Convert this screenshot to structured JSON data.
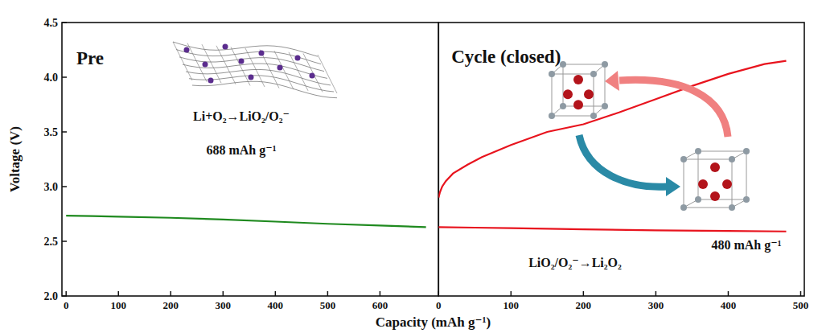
{
  "chart_data": [
    {
      "type": "line",
      "y_label": "Voltage (V)",
      "x_label": "Capacity (mAh g⁻¹)",
      "annotations": [
        "Pre",
        "Li+O₂→LiO₂/O₂⁻",
        "688 mAh g⁻¹"
      ],
      "xlim": [
        -8,
        712
      ],
      "xticks": [
        0,
        100,
        200,
        300,
        400,
        500,
        600
      ],
      "ylim": [
        2.0,
        4.5
      ],
      "yticks": [
        {
          "value": 2.0,
          "label": "2.0"
        },
        {
          "value": 2.5,
          "label": "2.5"
        },
        {
          "value": 3.0,
          "label": "3.0"
        },
        {
          "value": 3.5,
          "label": "3.5"
        },
        {
          "value": 4.0,
          "label": "4.0"
        },
        {
          "value": 4.5,
          "label": "4.5"
        }
      ],
      "grid": false,
      "series": [
        {
          "color": "#1f8a1f",
          "x": [
            0,
            50,
            100,
            200,
            300,
            400,
            500,
            600,
            688
          ],
          "values": [
            2.735,
            2.73,
            2.725,
            2.715,
            2.7,
            2.68,
            2.66,
            2.645,
            2.63
          ]
        }
      ]
    },
    {
      "type": "line",
      "annotations": [
        "Cycle (closed)",
        "LiO₂/O₂⁻→Li₂O₂",
        "480 mAh g⁻¹"
      ],
      "xlim": [
        0,
        505
      ],
      "xticks": [
        0,
        100,
        200,
        300,
        400,
        500
      ],
      "ylim": [
        2.0,
        4.5
      ],
      "tick_labels": "x",
      "grid": false,
      "series": [
        {
          "color": "#e8141e",
          "x": [
            0,
            50,
            100,
            200,
            300,
            400,
            480
          ],
          "values": [
            2.63,
            2.625,
            2.62,
            2.61,
            2.6,
            2.595,
            2.59
          ]
        },
        {
          "color": "#e8141e",
          "x": [
            0,
            2,
            5,
            10,
            20,
            40,
            60,
            100,
            150,
            200,
            250,
            300,
            350,
            400,
            450,
            480
          ],
          "values": [
            2.9,
            2.95,
            3.0,
            3.05,
            3.12,
            3.2,
            3.27,
            3.38,
            3.5,
            3.57,
            3.68,
            3.8,
            3.92,
            4.03,
            4.12,
            4.15
          ]
        }
      ]
    }
  ]
}
